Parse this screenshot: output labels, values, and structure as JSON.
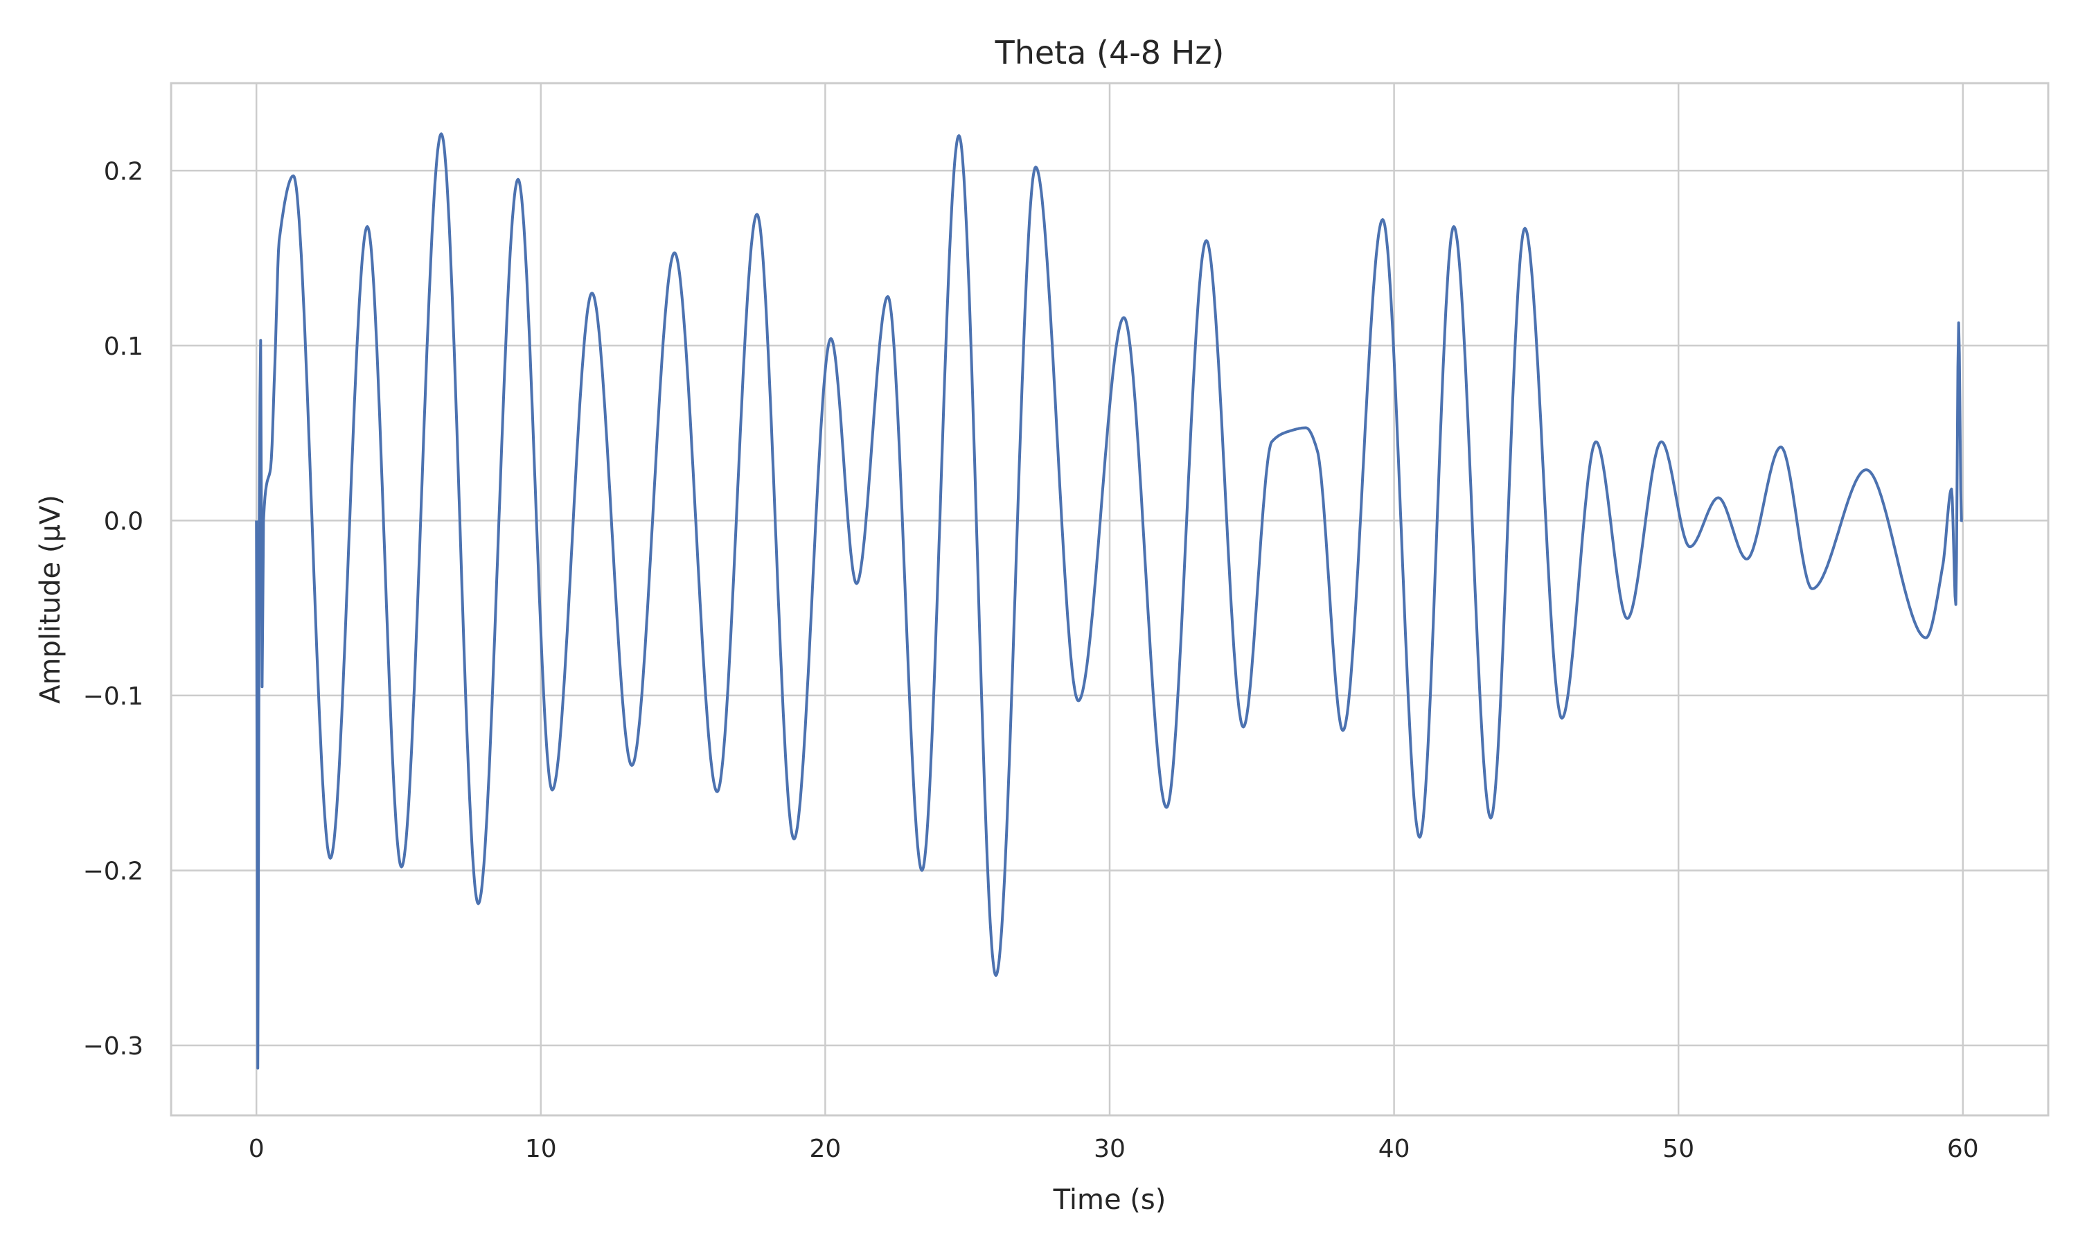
{
  "chart_data": {
    "type": "line",
    "title": "Theta (4-8 Hz)",
    "xlabel": "Time (s)",
    "ylabel": "Amplitude (μV)",
    "xlim": [
      -3,
      63
    ],
    "ylim": [
      -0.34,
      0.25
    ],
    "x_ticks": [
      0,
      10,
      20,
      30,
      40,
      50,
      60
    ],
    "x_tick_labels": [
      "0",
      "10",
      "20",
      "30",
      "40",
      "50",
      "60"
    ],
    "y_ticks": [
      -0.3,
      -0.2,
      -0.1,
      0.0,
      0.1,
      0.2
    ],
    "y_tick_labels": [
      "−0.3",
      "−0.2",
      "−0.1",
      "0.0",
      "0.1",
      "0.2"
    ],
    "grid": true,
    "series": [
      {
        "color": "#4c72b0",
        "x": [
          0.0,
          0.05,
          0.1,
          0.15,
          0.2,
          0.25,
          0.35,
          0.5,
          0.65,
          0.8,
          1.3,
          2.6,
          3.9,
          5.1,
          6.5,
          7.8,
          9.2,
          10.4,
          11.8,
          13.2,
          14.7,
          16.2,
          17.6,
          18.9,
          20.2,
          21.1,
          22.2,
          23.4,
          24.7,
          26.0,
          27.4,
          28.9,
          30.5,
          32.0,
          33.4,
          34.7,
          35.7,
          36.3,
          36.9,
          37.3,
          38.2,
          39.6,
          40.9,
          42.1,
          43.4,
          44.6,
          45.9,
          47.1,
          48.2,
          49.4,
          50.4,
          51.4,
          52.4,
          53.6,
          54.7,
          56.6,
          58.7,
          59.3,
          59.6,
          59.75,
          59.85,
          59.95,
          60.0
        ],
        "y": [
          0.0,
          -0.313,
          0.0,
          0.103,
          -0.095,
          0.0,
          0.02,
          0.03,
          0.09,
          0.16,
          0.197,
          -0.193,
          0.168,
          -0.198,
          0.221,
          -0.219,
          0.195,
          -0.154,
          0.13,
          -0.14,
          0.153,
          -0.155,
          0.175,
          -0.182,
          0.104,
          -0.036,
          0.128,
          -0.2,
          0.22,
          -0.26,
          0.202,
          -0.103,
          0.116,
          -0.164,
          0.16,
          -0.118,
          0.045,
          0.051,
          0.053,
          0.04,
          -0.12,
          0.172,
          -0.181,
          0.168,
          -0.17,
          0.167,
          -0.113,
          0.045,
          -0.056,
          0.045,
          -0.015,
          0.013,
          -0.022,
          0.042,
          -0.039,
          0.029,
          -0.067,
          -0.025,
          0.018,
          -0.048,
          0.113,
          0.0,
          0.0
        ]
      }
    ]
  }
}
